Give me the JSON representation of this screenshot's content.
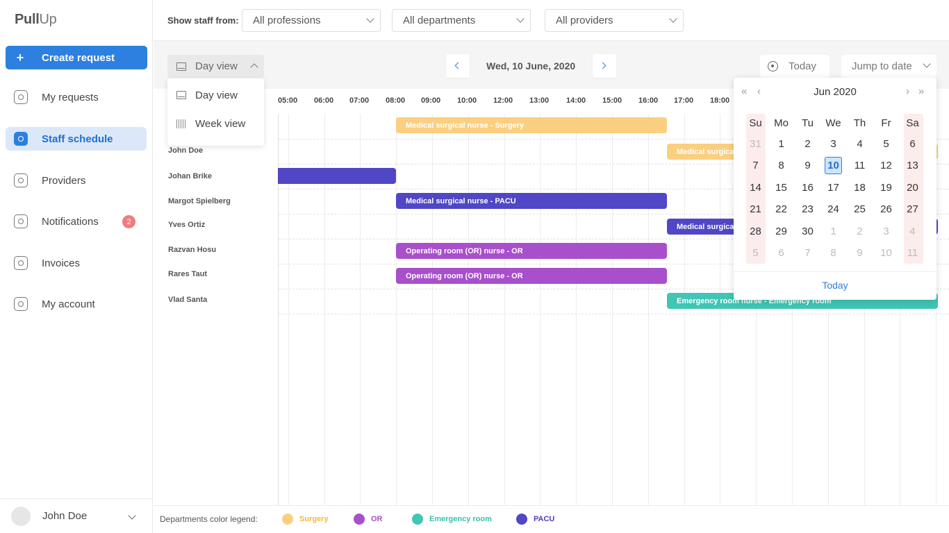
{
  "app": {
    "logo_bold": "Pull",
    "logo_light": "Up"
  },
  "sidebar": {
    "create_label": "Create request",
    "items": [
      {
        "label": "My requests"
      },
      {
        "label": "Staff schedule",
        "active": true
      },
      {
        "label": "Providers"
      },
      {
        "label": "Notifications",
        "badge": "2"
      },
      {
        "label": "Invoices"
      },
      {
        "label": "My account"
      }
    ],
    "user": "John Doe"
  },
  "filters": {
    "label": "Show staff from:",
    "profession": "All professions",
    "department": "All departments",
    "provider": "All providers"
  },
  "toolbar": {
    "view": "Day view",
    "date": "Wed, 10 June, 2020",
    "today": "Today",
    "jump": "Jump to date"
  },
  "view_menu": [
    "Day view",
    "Week view"
  ],
  "schedule": {
    "times": [
      "05:00",
      "06:00",
      "07:00",
      "08:00",
      "09:00",
      "10:00",
      "12:00",
      "13:00",
      "14:00",
      "15:00",
      "16:00",
      "17:00",
      "18:00"
    ],
    "staff": [
      "John Doe",
      "Johan Brike",
      "Margot Spielberg",
      "Yves Ortiz",
      "Razvan Hosu",
      "Rares Taut",
      "Vlad Santa"
    ],
    "shifts": [
      {
        "label": "Medical surgical nurse  - Surgery"
      },
      {
        "label": "Medical surgical nurse  - Surgery"
      },
      {
        "label": ""
      },
      {
        "label": "Medical surgical nurse  - PACU"
      },
      {
        "label": "Medical surgical nurse  - PACU"
      },
      {
        "label": "Operating room (OR) nurse  - OR"
      },
      {
        "label": "Operating room (OR) nurse  - OR"
      },
      {
        "label": "Emergency room nurse  - Emergency room"
      }
    ]
  },
  "legend": {
    "label": "Departments color legend:",
    "items": [
      {
        "name": "Surgery",
        "color": "#fbcf80",
        "text_color": "#f5b54a"
      },
      {
        "name": "OR",
        "color": "#a84fcc",
        "text_color": "#a84fcc"
      },
      {
        "name": "Emergency room",
        "color": "#3fc6b4",
        "text_color": "#3bbfae"
      },
      {
        "name": "PACU",
        "color": "#5046c6",
        "text_color": "#4a40bd"
      }
    ]
  },
  "calendar": {
    "month_title": "Jun 2020",
    "nav": {
      "prev_year": "«",
      "prev": "‹",
      "next": "›",
      "next_year": "»"
    },
    "weekdays": [
      "Su",
      "Mo",
      "Tu",
      "We",
      "Th",
      "Fr",
      "Sa"
    ],
    "weeks": [
      [
        "31",
        "1",
        "2",
        "3",
        "4",
        "5",
        "6"
      ],
      [
        "7",
        "8",
        "9",
        "10",
        "11",
        "12",
        "13"
      ],
      [
        "14",
        "15",
        "16",
        "17",
        "18",
        "19",
        "20"
      ],
      [
        "21",
        "22",
        "23",
        "24",
        "25",
        "26",
        "27"
      ],
      [
        "28",
        "29",
        "30",
        "1",
        "2",
        "3",
        "4"
      ],
      [
        "5",
        "6",
        "7",
        "8",
        "9",
        "10",
        "11"
      ]
    ],
    "selected": "10",
    "footer": "Today"
  }
}
